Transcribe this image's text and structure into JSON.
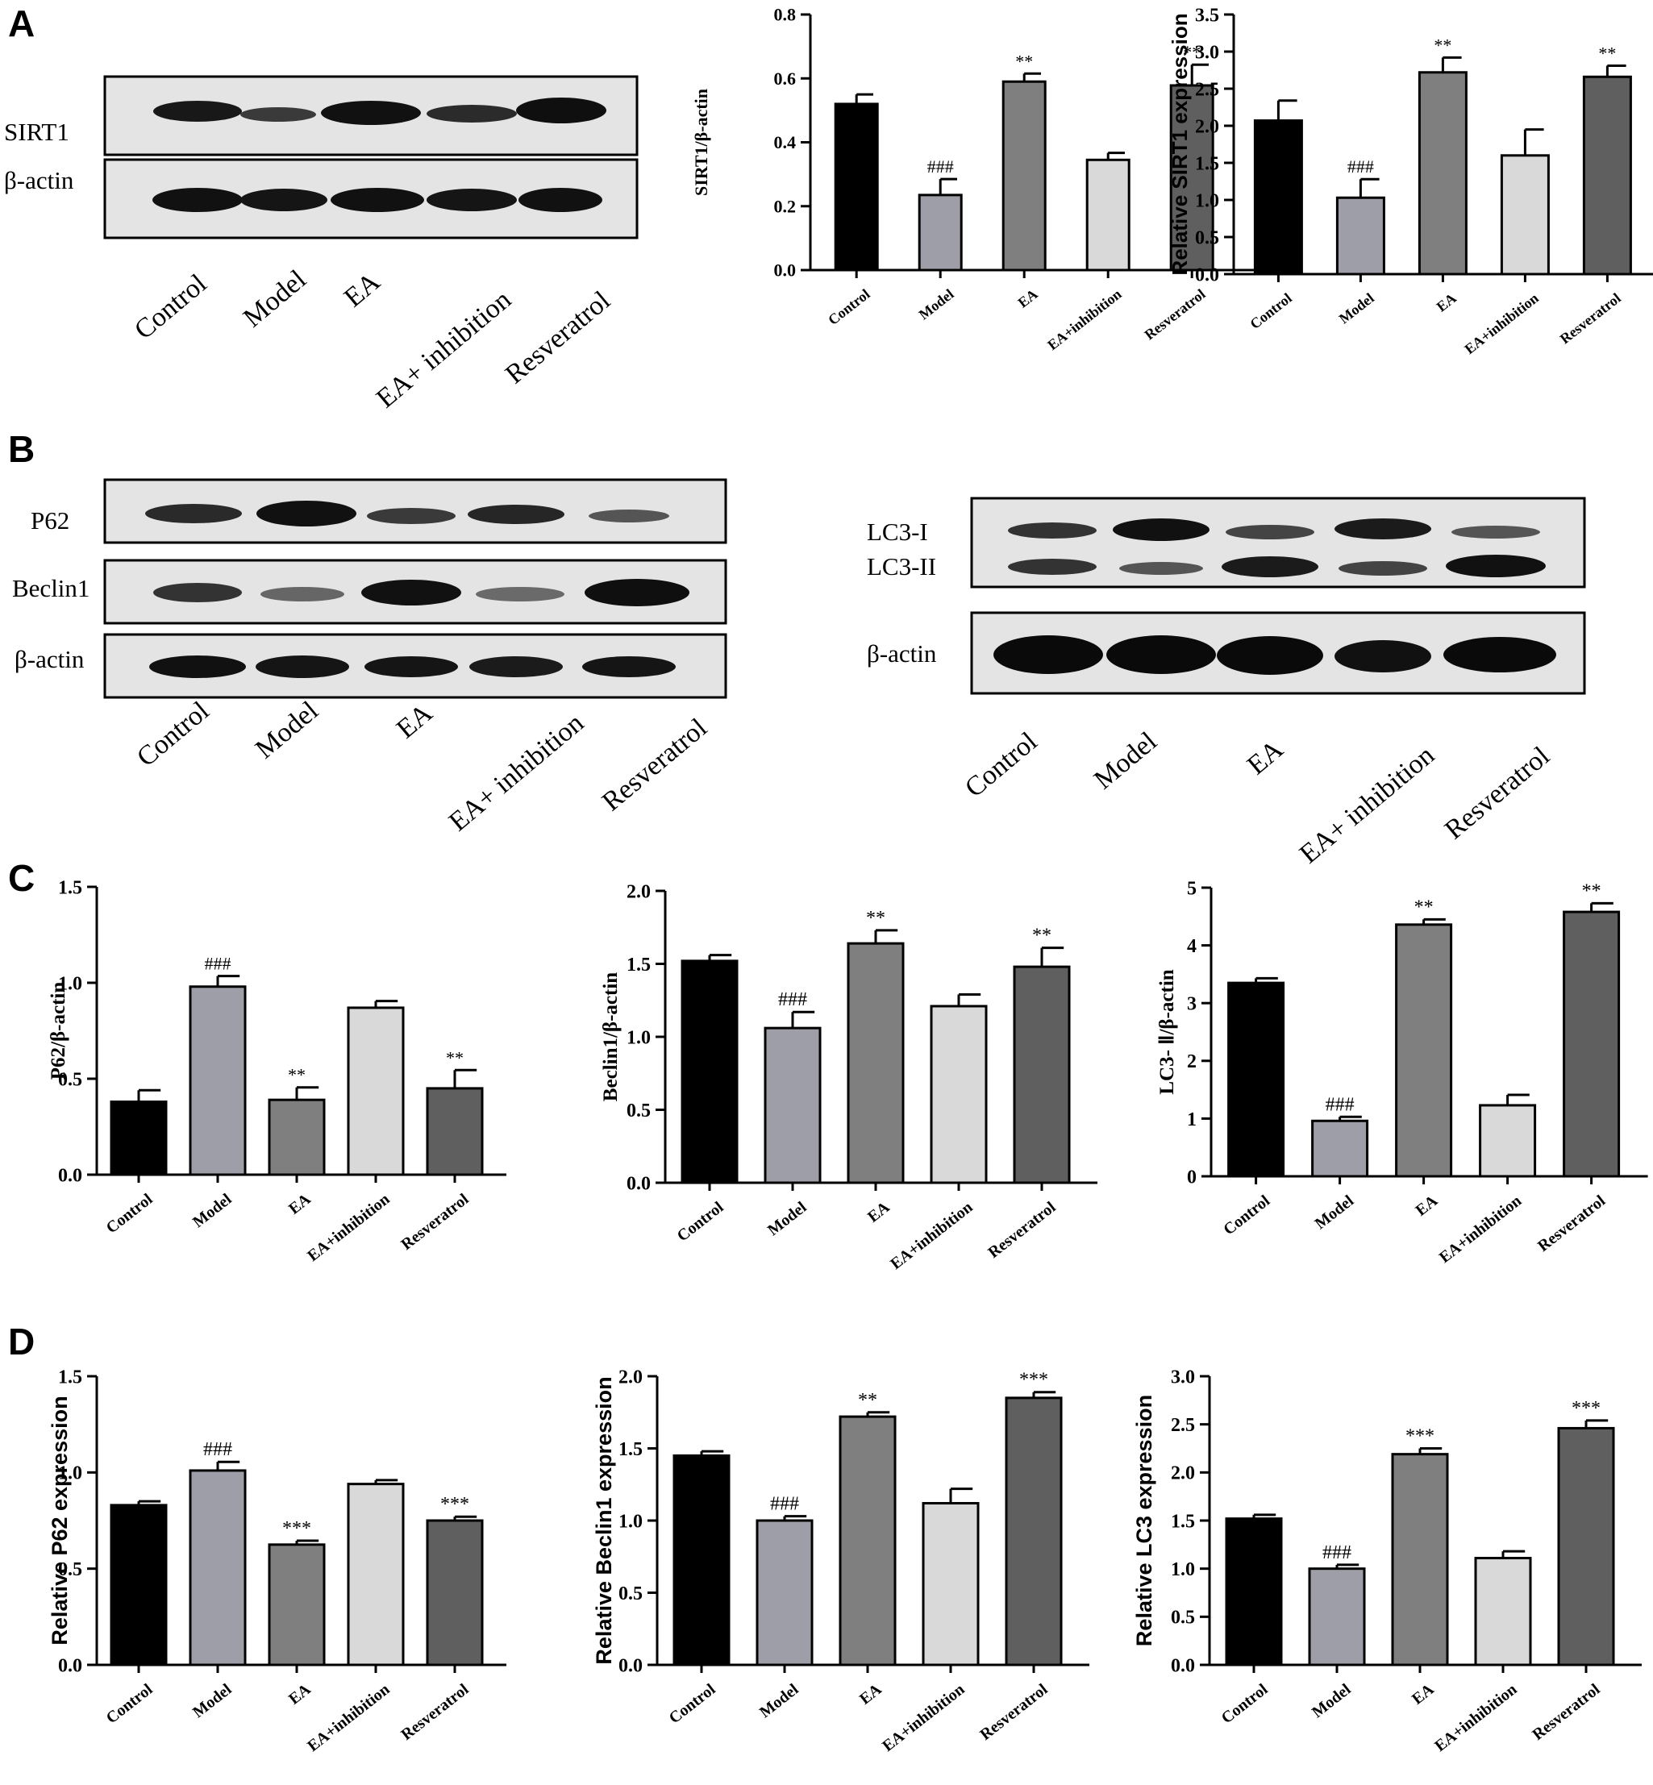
{
  "panels": {
    "a": "A",
    "b": "B",
    "c": "C",
    "d": "D"
  },
  "colors": {
    "Control": "#000000",
    "Model": "#9e9ea8",
    "EA": "#7f7f7f",
    "EA+inhibition": "#d9d9d9",
    "Resveratrol": "#5f5f5f"
  },
  "blots": {
    "a": {
      "proteins": [
        "SIRT1",
        "β-actin"
      ],
      "lanes": [
        "Control",
        "Model",
        "EA",
        "EA+ inhibition",
        "Resveratrol"
      ]
    },
    "b_left": {
      "proteins": [
        "P62",
        "Beclin1",
        "β-actin"
      ],
      "lanes": [
        "Control",
        "Model",
        "EA",
        "EA+ inhibition",
        "Resveratrol"
      ]
    },
    "b_right": {
      "proteins": [
        "LC3-I",
        "LC3-II",
        "β-actin"
      ],
      "lanes": [
        "Control",
        "Model",
        "EA",
        "EA+ inhibition",
        "Resveratrol"
      ]
    }
  },
  "chart_data": [
    {
      "id": "a1",
      "type": "bar",
      "categories": [
        "Control",
        "Model",
        "EA",
        "EA+inhibition",
        "Resveratrol"
      ],
      "values": [
        0.52,
        0.235,
        0.59,
        0.345,
        0.578
      ],
      "errors": [
        0.03,
        0.05,
        0.025,
        0.022,
        0.065
      ],
      "annotations": [
        "",
        "###",
        "**",
        "",
        "**"
      ],
      "ylabel": "SIRT1/β-actin",
      "ylim": [
        0,
        0.8
      ],
      "yticks": [
        "0.0",
        "0.2",
        "0.4",
        "0.6",
        "0.8"
      ]
    },
    {
      "id": "a2",
      "type": "bar",
      "categories": [
        "Control",
        "Model",
        "EA",
        "EA+inhibition",
        "Resveratrol"
      ],
      "values": [
        2.07,
        1.03,
        2.72,
        1.6,
        2.66
      ],
      "errors": [
        0.27,
        0.25,
        0.2,
        0.35,
        0.15
      ],
      "annotations": [
        "",
        "###",
        "**",
        "",
        "**"
      ],
      "ylabel": "Relative SIRT1 expression",
      "ylim": [
        0,
        3.5
      ],
      "yticks": [
        "0.0",
        "0.5",
        "1.0",
        "1.5",
        "2.0",
        "2.5",
        "3.0",
        "3.5"
      ]
    },
    {
      "id": "c1",
      "type": "bar",
      "categories": [
        "Control",
        "Model",
        "EA",
        "EA+inhibition",
        "Resveratrol"
      ],
      "values": [
        0.38,
        0.98,
        0.39,
        0.87,
        0.45
      ],
      "errors": [
        0.06,
        0.055,
        0.065,
        0.035,
        0.095
      ],
      "annotations": [
        "",
        "###",
        "**",
        "",
        "**"
      ],
      "ylabel": "P62/β-actin",
      "ylim": [
        0,
        1.5
      ],
      "yticks": [
        "0.0",
        "0.5",
        "1.0",
        "1.5"
      ]
    },
    {
      "id": "c2",
      "type": "bar",
      "categories": [
        "Control",
        "Model",
        "EA",
        "EA+inhibition",
        "Resveratrol"
      ],
      "values": [
        1.52,
        1.06,
        1.64,
        1.21,
        1.48
      ],
      "errors": [
        0.04,
        0.11,
        0.09,
        0.08,
        0.13
      ],
      "annotations": [
        "",
        "###",
        "**",
        "",
        "**"
      ],
      "ylabel": "Beclin1/β-actin",
      "ylim": [
        0,
        2.0
      ],
      "yticks": [
        "0.0",
        "0.5",
        "1.0",
        "1.5",
        "2.0"
      ]
    },
    {
      "id": "c3",
      "type": "bar",
      "categories": [
        "Control",
        "Model",
        "EA",
        "EA+inhibition",
        "Resveratrol"
      ],
      "values": [
        3.35,
        0.96,
        4.36,
        1.23,
        4.58
      ],
      "errors": [
        0.08,
        0.07,
        0.09,
        0.18,
        0.15
      ],
      "annotations": [
        "",
        "###",
        "**",
        "",
        "**"
      ],
      "ylabel": "LC3- Ⅱ/β-actin",
      "ylim": [
        0,
        5
      ],
      "yticks": [
        "0",
        "1",
        "2",
        "3",
        "4",
        "5"
      ]
    },
    {
      "id": "d1",
      "type": "bar",
      "categories": [
        "Control",
        "Model",
        "EA",
        "EA+inhibition",
        "Resveratrol"
      ],
      "values": [
        0.83,
        1.01,
        0.625,
        0.94,
        0.75
      ],
      "errors": [
        0.02,
        0.045,
        0.02,
        0.02,
        0.02
      ],
      "annotations": [
        "",
        "###",
        "***",
        "",
        "***"
      ],
      "ylabel": "Relative P62 expression",
      "ylim": [
        0,
        1.5
      ],
      "yticks": [
        "0.0",
        "0.5",
        "1.0",
        "1.5"
      ]
    },
    {
      "id": "d2",
      "type": "bar",
      "categories": [
        "Control",
        "Model",
        "EA",
        "EA+inhibition",
        "Resveratrol"
      ],
      "values": [
        1.45,
        1.0,
        1.72,
        1.12,
        1.85
      ],
      "errors": [
        0.03,
        0.03,
        0.03,
        0.1,
        0.04
      ],
      "annotations": [
        "",
        "###",
        "**",
        "",
        "***"
      ],
      "ylabel": "Relative Beclin1 expression",
      "ylim": [
        0,
        2.0
      ],
      "yticks": [
        "0.0",
        "0.5",
        "1.0",
        "1.5",
        "2.0"
      ]
    },
    {
      "id": "d3",
      "type": "bar",
      "categories": [
        "Control",
        "Model",
        "EA",
        "EA+inhibition",
        "Resveratrol"
      ],
      "values": [
        1.52,
        1.0,
        2.19,
        1.11,
        2.46
      ],
      "errors": [
        0.04,
        0.04,
        0.06,
        0.07,
        0.08
      ],
      "annotations": [
        "",
        "###",
        "***",
        "",
        "***"
      ],
      "ylabel": "Relative LC3 expression",
      "ylim": [
        0,
        3.0
      ],
      "yticks": [
        "0.0",
        "0.5",
        "1.0",
        "1.5",
        "2.0",
        "2.5",
        "3.0"
      ]
    }
  ]
}
